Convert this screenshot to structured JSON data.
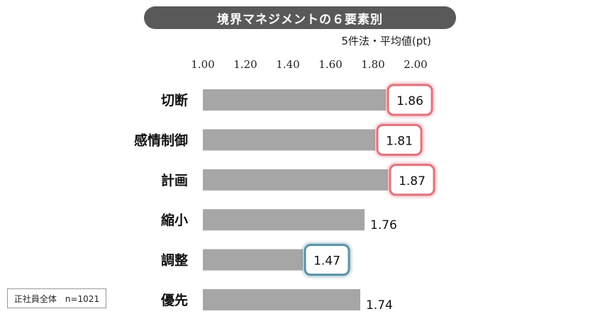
{
  "title": "境界マネジメントの６要素別",
  "subtitle": "5件法・平均値(pt)",
  "note": "正社員全体　n=1021",
  "colors": {
    "bar": "#a6a6a6",
    "highlight_red": "#e0737d",
    "highlight_blue": "#5b93a6",
    "title_bg": "#595959"
  },
  "chart_data": {
    "type": "bar",
    "orientation": "horizontal",
    "categories": [
      "切断",
      "感情制御",
      "計画",
      "縮小",
      "調整",
      "優先"
    ],
    "values": [
      1.86,
      1.81,
      1.87,
      1.76,
      1.47,
      1.74
    ],
    "value_labels": [
      "1.86",
      "1.81",
      "1.87",
      "1.76",
      "1.47",
      "1.74"
    ],
    "highlight": [
      "red",
      "red",
      "red",
      "none",
      "blue",
      "none"
    ],
    "xlim": [
      1.0,
      2.0
    ],
    "xticks": [
      "1.00",
      "1.20",
      "1.40",
      "1.60",
      "1.80",
      "2.00"
    ],
    "xtick_values": [
      1.0,
      1.2,
      1.4,
      1.6,
      1.8,
      2.0
    ],
    "axis_position": "top",
    "grid": false
  }
}
